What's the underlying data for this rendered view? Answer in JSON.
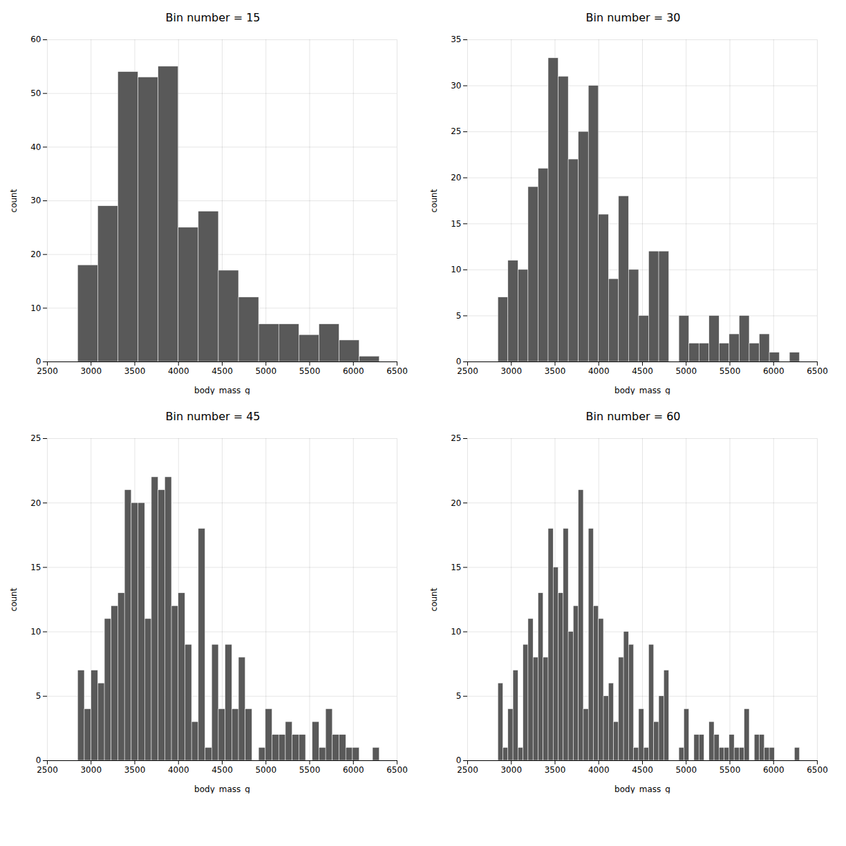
{
  "chart_data": [
    {
      "type": "histogram",
      "title": "Bin number = 15",
      "xlabel": "body_mass_g",
      "ylabel": "count",
      "bins": [
        2850,
        3080,
        3310,
        3540,
        3770,
        4000,
        4230,
        4460,
        4690,
        4920,
        5150,
        5380,
        5610,
        5840,
        6070,
        6300
      ],
      "values": [
        18,
        29,
        54,
        53,
        55,
        25,
        28,
        17,
        12,
        7,
        7,
        5,
        7,
        4,
        1
      ],
      "color": "#595959",
      "xlim": [
        2500,
        6500
      ],
      "xticks": [
        2500,
        3000,
        3500,
        4000,
        4500,
        5000,
        5500,
        6000,
        6500
      ],
      "ylim": [
        0,
        60
      ],
      "yticks": [
        0,
        10,
        20,
        30,
        40,
        50,
        60
      ],
      "grid": true
    },
    {
      "type": "histogram",
      "title": "Bin number = 30",
      "xlabel": "body_mass_g",
      "ylabel": "count",
      "bins": [
        2850,
        2965,
        3080,
        3195,
        3310,
        3425,
        3540,
        3655,
        3770,
        3885,
        4000,
        4115,
        4230,
        4345,
        4460,
        4575,
        4690,
        4805,
        4920,
        5035,
        5150,
        5265,
        5380,
        5495,
        5610,
        5725,
        5840,
        5955,
        6070,
        6185,
        6300
      ],
      "values": [
        7,
        11,
        10,
        19,
        21,
        33,
        31,
        22,
        25,
        30,
        16,
        9,
        18,
        10,
        5,
        12,
        12,
        0,
        5,
        2,
        2,
        5,
        2,
        3,
        5,
        2,
        3,
        1,
        0,
        1
      ],
      "color": "#595959",
      "xlim": [
        2500,
        6500
      ],
      "xticks": [
        2500,
        3000,
        3500,
        4000,
        4500,
        5000,
        5500,
        6000,
        6500
      ],
      "ylim": [
        0,
        35
      ],
      "yticks": [
        0,
        5,
        10,
        15,
        20,
        25,
        30,
        35
      ],
      "grid": true
    },
    {
      "type": "histogram",
      "title": "Bin number = 45",
      "xlabel": "body_mass_g",
      "ylabel": "count",
      "bins": [
        2850,
        2926.666666666667,
        3003.333333333333,
        3080,
        3156.666666666667,
        3233.333333333333,
        3310,
        3386.666666666667,
        3463.333333333333,
        3540,
        3616.666666666667,
        3693.333333333333,
        3770,
        3846.666666666667,
        3923.333333333333,
        4000,
        4076.666666666667,
        4153.333333333333,
        4230,
        4306.666666666667,
        4383.333333333333,
        4460,
        4536.666666666667,
        4613.333333333333,
        4690,
        4766.666666666667,
        4843.333333333333,
        4920,
        4996.666666666667,
        5073.333333333333,
        5150,
        5226.666666666667,
        5303.333333333333,
        5380,
        5456.666666666667,
        5533.333333333333,
        5610,
        5686.666666666667,
        5763.333333333333,
        5840,
        5916.666666666667,
        5993.333333333333,
        6070,
        6146.666666666667,
        6223.333333333333,
        6300
      ],
      "values": [
        7,
        4,
        7,
        6,
        11,
        12,
        13,
        21,
        20,
        20,
        11,
        22,
        21,
        22,
        12,
        13,
        9,
        3,
        18,
        1,
        9,
        4,
        9,
        4,
        8,
        4,
        0,
        1,
        4,
        2,
        2,
        3,
        2,
        2,
        0,
        3,
        1,
        4,
        2,
        2,
        1,
        1,
        0,
        0,
        1
      ],
      "color": "#595959",
      "xlim": [
        2500,
        6500
      ],
      "xticks": [
        2500,
        3000,
        3500,
        4000,
        4500,
        5000,
        5500,
        6000,
        6500
      ],
      "ylim": [
        0,
        25
      ],
      "yticks": [
        0,
        5,
        10,
        15,
        20,
        25
      ],
      "grid": true
    },
    {
      "type": "histogram",
      "title": "Bin number = 60",
      "xlabel": "body_mass_g",
      "ylabel": "count",
      "bins": [
        2850,
        2907.5,
        2965,
        3022.5,
        3080,
        3137.5,
        3195,
        3252.5,
        3310,
        3367.5,
        3425,
        3482.5,
        3540,
        3597.5,
        3655,
        3712.5,
        3770,
        3827.5,
        3885,
        3942.5,
        4000,
        4057.5,
        4115,
        4172.5,
        4230,
        4287.5,
        4345,
        4402.5,
        4460,
        4517.5,
        4575,
        4632.5,
        4690,
        4747.5,
        4805,
        4862.5,
        4920,
        4977.5,
        5035,
        5092.5,
        5150,
        5207.5,
        5265,
        5322.5,
        5380,
        5437.5,
        5495,
        5552.5,
        5610,
        5667.5,
        5725,
        5782.5,
        5840,
        5897.5,
        5955,
        6012.5,
        6070,
        6127.5,
        6185,
        6242.5,
        6300
      ],
      "values": [
        6,
        1,
        4,
        7,
        1,
        9,
        11,
        8,
        13,
        8,
        18,
        15,
        13,
        18,
        10,
        12,
        21,
        4,
        18,
        12,
        11,
        5,
        6,
        3,
        8,
        10,
        9,
        1,
        4,
        1,
        9,
        3,
        5,
        7,
        0,
        0,
        1,
        4,
        0,
        2,
        2,
        0,
        3,
        2,
        1,
        1,
        2,
        1,
        1,
        4,
        0,
        2,
        2,
        1,
        1,
        0,
        0,
        0,
        0,
        1
      ],
      "color": "#595959",
      "xlim": [
        2500,
        6500
      ],
      "xticks": [
        2500,
        3000,
        3500,
        4000,
        4500,
        5000,
        5500,
        6000,
        6500
      ],
      "ylim": [
        0,
        25
      ],
      "yticks": [
        0,
        5,
        10,
        15,
        20,
        25
      ],
      "grid": true
    }
  ]
}
